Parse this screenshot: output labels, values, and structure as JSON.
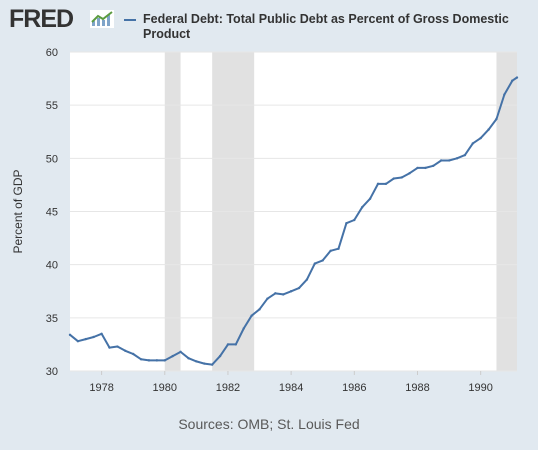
{
  "header": {
    "logo_text": "FRED",
    "logo_icon": "fred-trend-icon"
  },
  "source_text": "Sources: OMB; St. Louis Fed",
  "colors": {
    "background": "#e1e9f0",
    "plot_background": "#ffffff",
    "line": "#4572a7",
    "recession_shading": "#e1e1e1"
  },
  "chart_data": {
    "type": "line",
    "title": "",
    "xlabel": "",
    "ylabel": "Percent of GDP",
    "xlim": [
      1977.0,
      1991.15
    ],
    "ylim": [
      30,
      60
    ],
    "x_ticks": [
      1978,
      1980,
      1982,
      1984,
      1986,
      1988,
      1990
    ],
    "y_ticks": [
      30,
      35,
      40,
      45,
      50,
      55,
      60
    ],
    "grid": "horizontal",
    "legend": "top",
    "recessions": [
      [
        1980.0,
        1980.5
      ],
      [
        1981.5,
        1982.83
      ],
      [
        1990.5,
        1991.15
      ]
    ],
    "series": [
      {
        "name": "Federal Debt: Total Public Debt as Percent of Gross Domestic Product",
        "x": [
          1977.0,
          1977.25,
          1977.5,
          1977.75,
          1978.0,
          1978.25,
          1978.5,
          1978.75,
          1979.0,
          1979.25,
          1979.5,
          1979.75,
          1980.0,
          1980.25,
          1980.5,
          1980.75,
          1981.0,
          1981.25,
          1981.5,
          1981.75,
          1982.0,
          1982.25,
          1982.5,
          1982.75,
          1983.0,
          1983.25,
          1983.5,
          1983.75,
          1984.0,
          1984.25,
          1984.5,
          1984.75,
          1985.0,
          1985.25,
          1985.5,
          1985.75,
          1986.0,
          1986.25,
          1986.5,
          1986.75,
          1987.0,
          1987.25,
          1987.5,
          1987.75,
          1988.0,
          1988.25,
          1988.5,
          1988.75,
          1989.0,
          1989.25,
          1989.5,
          1989.75,
          1990.0,
          1990.25,
          1990.5,
          1990.75,
          1991.0,
          1991.15
        ],
        "values": [
          33.4,
          32.8,
          33.0,
          33.2,
          33.5,
          32.2,
          32.3,
          31.9,
          31.6,
          31.1,
          31.0,
          31.0,
          31.0,
          31.4,
          31.8,
          31.2,
          30.9,
          30.7,
          30.6,
          31.4,
          32.5,
          32.5,
          34.0,
          35.2,
          35.8,
          36.8,
          37.3,
          37.2,
          37.5,
          37.8,
          38.6,
          40.1,
          40.4,
          41.3,
          41.5,
          43.9,
          44.2,
          45.4,
          46.2,
          47.6,
          47.6,
          48.1,
          48.2,
          48.6,
          49.1,
          49.1,
          49.3,
          49.8,
          49.8,
          50.0,
          50.3,
          51.4,
          51.9,
          52.7,
          53.7,
          56.0,
          57.3,
          57.6
        ]
      }
    ]
  }
}
